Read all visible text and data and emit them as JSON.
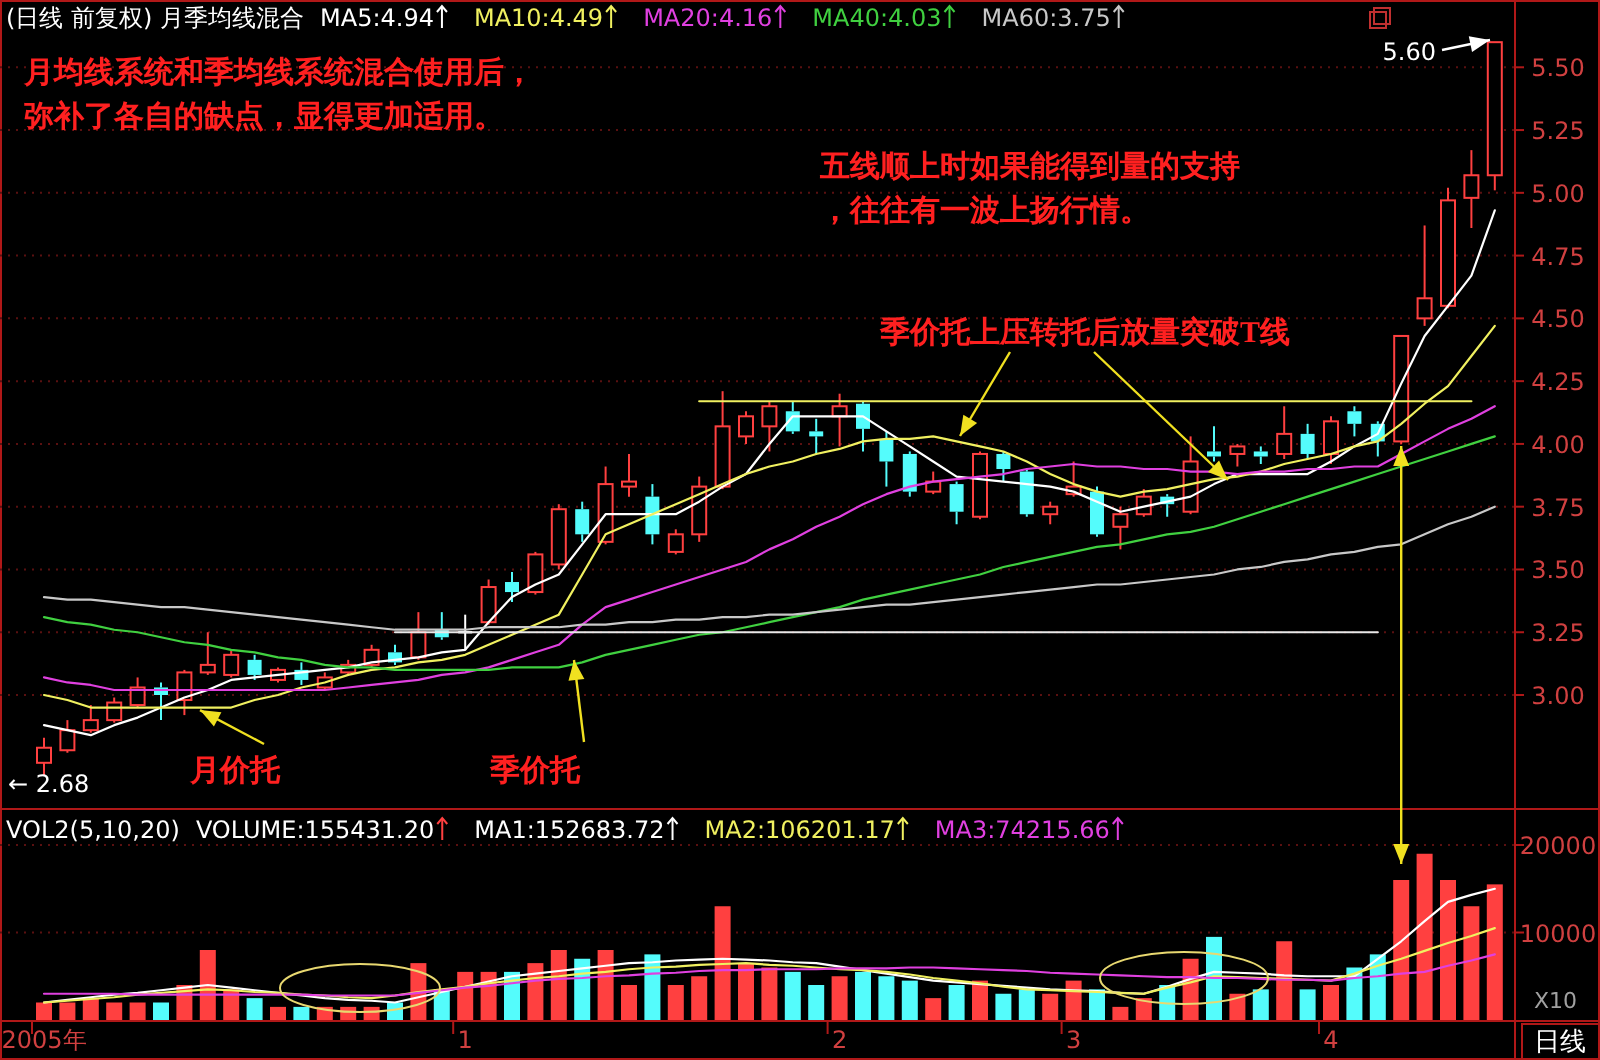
{
  "chart_data": [
    {
      "type": "candlestick",
      "title": "(日线 前复权) 月季均线混合",
      "legend": "top",
      "grid": "y",
      "tick_labels": "y",
      "categories": [
        null,
        null,
        null,
        null,
        null,
        null,
        null,
        null,
        null,
        null,
        null,
        null,
        null,
        null,
        null,
        null,
        null,
        null,
        null,
        null,
        null,
        null,
        null,
        null,
        null,
        null,
        null,
        null,
        null,
        null,
        null,
        null,
        null,
        null,
        null,
        null,
        null,
        null,
        null,
        null,
        null,
        null,
        null,
        null,
        null,
        null,
        null,
        null,
        null,
        null,
        null,
        null,
        null,
        null,
        null,
        null,
        null,
        null,
        null,
        null,
        null,
        null,
        null
      ],
      "ohlc": [
        [
          2.73,
          2.83,
          2.68,
          2.79
        ],
        [
          2.78,
          2.9,
          2.77,
          2.86
        ],
        [
          2.86,
          2.96,
          2.85,
          2.9
        ],
        [
          2.9,
          2.99,
          2.89,
          2.97
        ],
        [
          2.96,
          3.07,
          2.95,
          3.03
        ],
        [
          3.03,
          3.05,
          2.9,
          3.0
        ],
        [
          2.98,
          3.1,
          2.92,
          3.09
        ],
        [
          3.09,
          3.25,
          3.08,
          3.12
        ],
        [
          3.08,
          3.18,
          3.07,
          3.16
        ],
        [
          3.14,
          3.16,
          3.06,
          3.08
        ],
        [
          3.06,
          3.11,
          3.05,
          3.1
        ],
        [
          3.1,
          3.13,
          3.04,
          3.06
        ],
        [
          3.03,
          3.09,
          3.02,
          3.07
        ],
        [
          3.09,
          3.14,
          3.08,
          3.12
        ],
        [
          3.12,
          3.2,
          3.11,
          3.18
        ],
        [
          3.17,
          3.2,
          3.12,
          3.13
        ],
        [
          3.15,
          3.33,
          3.14,
          3.25
        ],
        [
          3.26,
          3.33,
          3.22,
          3.23
        ],
        [
          3.25,
          3.32,
          3.18,
          3.25
        ],
        [
          3.29,
          3.46,
          3.28,
          3.43
        ],
        [
          3.45,
          3.49,
          3.37,
          3.41
        ],
        [
          3.41,
          3.57,
          3.4,
          3.56
        ],
        [
          3.52,
          3.76,
          3.5,
          3.74
        ],
        [
          3.74,
          3.77,
          3.61,
          3.64
        ],
        [
          3.61,
          3.91,
          3.6,
          3.84
        ],
        [
          3.83,
          3.96,
          3.79,
          3.85
        ],
        [
          3.79,
          3.84,
          3.6,
          3.64
        ],
        [
          3.57,
          3.66,
          3.56,
          3.64
        ],
        [
          3.64,
          3.87,
          3.61,
          3.83
        ],
        [
          3.83,
          4.21,
          3.82,
          4.07
        ],
        [
          4.03,
          4.13,
          4.0,
          4.11
        ],
        [
          4.07,
          4.17,
          3.97,
          4.15
        ],
        [
          4.13,
          4.17,
          4.04,
          4.05
        ],
        [
          4.05,
          4.1,
          3.96,
          4.03
        ],
        [
          4.11,
          4.2,
          3.99,
          4.15
        ],
        [
          4.16,
          4.17,
          3.97,
          4.06
        ],
        [
          4.02,
          4.05,
          3.83,
          3.93
        ],
        [
          3.96,
          3.97,
          3.79,
          3.81
        ],
        [
          3.81,
          3.89,
          3.8,
          3.85
        ],
        [
          3.84,
          3.85,
          3.68,
          3.73
        ],
        [
          3.71,
          3.97,
          3.7,
          3.96
        ],
        [
          3.96,
          3.97,
          3.85,
          3.9
        ],
        [
          3.89,
          3.9,
          3.71,
          3.72
        ],
        [
          3.72,
          3.77,
          3.68,
          3.75
        ],
        [
          3.8,
          3.93,
          3.79,
          3.83
        ],
        [
          3.81,
          3.83,
          3.63,
          3.64
        ],
        [
          3.67,
          3.75,
          3.58,
          3.72
        ],
        [
          3.72,
          3.82,
          3.71,
          3.79
        ],
        [
          3.79,
          3.8,
          3.71,
          3.76
        ],
        [
          3.73,
          4.03,
          3.72,
          3.93
        ],
        [
          3.97,
          4.07,
          3.93,
          3.95
        ],
        [
          3.96,
          4.0,
          3.91,
          3.99
        ],
        [
          3.97,
          3.99,
          3.92,
          3.95
        ],
        [
          3.96,
          4.15,
          3.94,
          4.04
        ],
        [
          4.04,
          4.08,
          3.94,
          3.96
        ],
        [
          3.96,
          4.11,
          3.92,
          4.09
        ],
        [
          4.13,
          4.15,
          4.03,
          4.08
        ],
        [
          4.08,
          4.09,
          3.95,
          4.01
        ],
        [
          4.01,
          4.43,
          4.0,
          4.43
        ],
        [
          4.5,
          4.87,
          4.47,
          4.58
        ],
        [
          4.55,
          5.02,
          4.54,
          4.97
        ],
        [
          4.98,
          5.17,
          4.86,
          5.07
        ],
        [
          5.07,
          5.6,
          5.01,
          5.6
        ]
      ],
      "colors": [
        "#ff4040",
        "#ff4040",
        "#ff4040",
        "#ff4040",
        "#ff4040",
        "#54fcfc",
        "#ff4040",
        "#ff4040",
        "#ff4040",
        "#54fcfc",
        "#ff4040",
        "#54fcfc",
        "#ff4040",
        "#ff4040",
        "#ff4040",
        "#54fcfc",
        "#ff4040",
        "#54fcfc",
        "#ffffff",
        "#ff4040",
        "#54fcfc",
        "#ff4040",
        "#ff4040",
        "#54fcfc",
        "#ff4040",
        "#ff4040",
        "#54fcfc",
        "#ff4040",
        "#ff4040",
        "#ff4040",
        "#ff4040",
        "#ff4040",
        "#54fcfc",
        "#54fcfc",
        "#ff4040",
        "#54fcfc",
        "#54fcfc",
        "#54fcfc",
        "#ff4040",
        "#54fcfc",
        "#ff4040",
        "#54fcfc",
        "#54fcfc",
        "#ff4040",
        "#ff4040",
        "#54fcfc",
        "#ff4040",
        "#ff4040",
        "#54fcfc",
        "#ff4040",
        "#54fcfc",
        "#ff4040",
        "#54fcfc",
        "#ff4040",
        "#54fcfc",
        "#ff4040",
        "#54fcfc",
        "#54fcfc",
        "#ff4040",
        "#ff4040",
        "#ff4040",
        "#ff4040",
        "#ff4040"
      ],
      "series": [
        {
          "name": "MA5:4.94",
          "type": "line",
          "color": "#ffffff",
          "values": [
            2.88,
            2.86,
            2.84,
            2.88,
            2.91,
            2.95,
            2.99,
            3.02,
            3.06,
            3.07,
            3.08,
            3.09,
            3.1,
            3.11,
            3.13,
            3.14,
            3.15,
            3.17,
            3.18,
            3.29,
            3.39,
            3.44,
            3.48,
            3.6,
            3.72,
            3.72,
            3.72,
            3.72,
            3.77,
            3.83,
            3.88,
            4.0,
            4.11,
            4.11,
            4.11,
            4.11,
            4.05,
            3.99,
            3.93,
            3.87,
            3.86,
            3.85,
            3.84,
            3.83,
            3.81,
            3.77,
            3.73,
            3.75,
            3.77,
            3.79,
            3.84,
            3.88,
            3.88,
            3.88,
            3.88,
            3.93,
            3.99,
            4.04,
            4.24,
            4.43,
            4.55,
            4.67,
            4.93
          ]
        },
        {
          "name": "MA10:4.49",
          "type": "line",
          "color": "#f0f060",
          "values": [
            3.0,
            2.98,
            2.95,
            2.95,
            2.95,
            2.95,
            2.95,
            2.95,
            2.95,
            2.98,
            3.0,
            3.03,
            3.05,
            3.08,
            3.1,
            3.11,
            3.13,
            3.14,
            3.16,
            3.2,
            3.24,
            3.28,
            3.32,
            3.48,
            3.64,
            3.68,
            3.72,
            3.76,
            3.8,
            3.84,
            3.88,
            3.91,
            3.93,
            3.96,
            3.98,
            4.01,
            4.02,
            4.02,
            4.03,
            4.01,
            3.99,
            3.97,
            3.93,
            3.88,
            3.84,
            3.81,
            3.79,
            3.81,
            3.82,
            3.84,
            3.86,
            3.87,
            3.89,
            3.92,
            3.94,
            3.96,
            3.99,
            4.01,
            4.08,
            4.16,
            4.23,
            4.35,
            4.47
          ]
        },
        {
          "name": "MA20:4.16",
          "type": "line",
          "color": "#e040e0",
          "values": [
            3.07,
            3.05,
            3.04,
            3.02,
            3.02,
            3.02,
            3.02,
            3.02,
            3.02,
            3.02,
            3.02,
            3.02,
            3.02,
            3.03,
            3.04,
            3.05,
            3.06,
            3.08,
            3.09,
            3.11,
            3.14,
            3.17,
            3.2,
            3.28,
            3.35,
            3.38,
            3.41,
            3.44,
            3.47,
            3.5,
            3.53,
            3.58,
            3.62,
            3.67,
            3.71,
            3.76,
            3.8,
            3.83,
            3.85,
            3.86,
            3.87,
            3.88,
            3.9,
            3.91,
            3.92,
            3.91,
            3.91,
            3.9,
            3.9,
            3.89,
            3.89,
            3.88,
            3.89,
            3.89,
            3.9,
            3.9,
            3.91,
            3.91,
            3.96,
            4.01,
            4.06,
            4.1,
            4.15
          ]
        },
        {
          "name": "MA40:4.03",
          "type": "line",
          "color": "#40d040",
          "values": [
            3.31,
            3.29,
            3.28,
            3.26,
            3.25,
            3.23,
            3.21,
            3.2,
            3.18,
            3.17,
            3.15,
            3.14,
            3.12,
            3.11,
            3.11,
            3.1,
            3.1,
            3.1,
            3.1,
            3.1,
            3.11,
            3.11,
            3.11,
            3.13,
            3.16,
            3.18,
            3.2,
            3.22,
            3.24,
            3.25,
            3.27,
            3.29,
            3.31,
            3.33,
            3.35,
            3.38,
            3.4,
            3.42,
            3.44,
            3.46,
            3.48,
            3.51,
            3.53,
            3.55,
            3.57,
            3.59,
            3.6,
            3.62,
            3.64,
            3.65,
            3.67,
            3.7,
            3.73,
            3.76,
            3.79,
            3.82,
            3.85,
            3.88,
            3.91,
            3.94,
            3.97,
            4.0,
            4.03
          ]
        },
        {
          "name": "MA60:3.75",
          "type": "line",
          "color": "#c8c8c8",
          "values": [
            3.39,
            3.38,
            3.38,
            3.37,
            3.36,
            3.35,
            3.35,
            3.34,
            3.33,
            3.32,
            3.31,
            3.3,
            3.29,
            3.28,
            3.27,
            3.26,
            3.26,
            3.26,
            3.26,
            3.27,
            3.27,
            3.27,
            3.27,
            3.28,
            3.28,
            3.29,
            3.29,
            3.3,
            3.3,
            3.31,
            3.31,
            3.32,
            3.32,
            3.33,
            3.34,
            3.35,
            3.36,
            3.36,
            3.37,
            3.38,
            3.39,
            3.4,
            3.41,
            3.42,
            3.43,
            3.44,
            3.44,
            3.45,
            3.46,
            3.47,
            3.48,
            3.5,
            3.51,
            3.53,
            3.54,
            3.56,
            3.57,
            3.59,
            3.6,
            3.64,
            3.68,
            3.71,
            3.75
          ]
        },
        {
          "type": "line",
          "color": "#f0f060",
          "values": [
            null,
            null,
            null,
            null,
            null,
            null,
            null,
            null,
            null,
            null,
            null,
            null,
            null,
            null,
            null,
            null,
            null,
            null,
            null,
            null,
            null,
            null,
            null,
            null,
            null,
            null,
            null,
            null,
            4.17,
            4.17,
            4.17,
            4.17,
            4.17,
            4.17,
            4.17,
            4.17,
            4.17,
            4.17,
            4.17,
            4.17,
            4.17,
            4.17,
            4.17,
            4.17,
            4.17,
            4.17,
            4.17,
            4.17,
            4.17,
            4.17,
            4.17,
            4.17,
            4.17,
            4.17,
            4.17,
            4.17,
            4.17,
            4.17,
            4.17,
            4.17,
            4.17,
            4.17,
            null
          ]
        },
        {
          "type": "line",
          "color": "#e8e8e8",
          "values": [
            null,
            null,
            null,
            null,
            null,
            null,
            null,
            null,
            null,
            null,
            null,
            null,
            null,
            null,
            null,
            3.25,
            3.25,
            3.25,
            3.25,
            3.25,
            3.25,
            3.25,
            3.25,
            3.25,
            3.25,
            3.25,
            3.25,
            3.25,
            3.25,
            3.25,
            3.25,
            3.25,
            3.25,
            3.25,
            3.25,
            3.25,
            3.25,
            3.25,
            3.25,
            3.25,
            3.25,
            3.25,
            3.25,
            3.25,
            3.25,
            3.25,
            3.25,
            3.25,
            3.25,
            3.25,
            3.25,
            3.25,
            3.25,
            3.25,
            3.25,
            3.25,
            3.25,
            3.25,
            null,
            null,
            null,
            null,
            null
          ]
        }
      ],
      "ylim": [
        2.55,
        5.76
      ],
      "yticks": [
        {
          "value": 3,
          "label": "3.00"
        },
        {
          "value": 3.25,
          "label": "3.25"
        },
        {
          "value": 3.5,
          "label": "3.50"
        },
        {
          "value": 3.75,
          "label": "3.75"
        },
        {
          "value": 4,
          "label": "4.00"
        },
        {
          "value": 4.25,
          "label": "4.25"
        },
        {
          "value": 4.5,
          "label": "4.50"
        },
        {
          "value": 4.75,
          "label": "4.75"
        },
        {
          "value": 5,
          "label": "5.00"
        },
        {
          "value": 5.25,
          "label": "5.25"
        },
        {
          "value": 5.5,
          "label": "5.50"
        }
      ],
      "annotations": [
        "月均线系统和季均线系统混合使用后，",
        "弥补了各自的缺点，显得更加适用。",
        "五线顺上时如果能得到量的支持",
        "，往往有一波上扬行情。",
        "季价托上压转托后放量突破T线",
        {
          "text": "月价托",
          "y": 2.94
        },
        "季价托",
        "5.60",
        "← 2.68"
      ]
    },
    {
      "type": "bar",
      "title": "VOL2(5,10,20)",
      "ylabel": "X10",
      "legend": "top",
      "grid": "y",
      "categories": [
        "2005年",
        null,
        null,
        null,
        null,
        null,
        null,
        null,
        null,
        null,
        null,
        null,
        null,
        null,
        null,
        null,
        null,
        null,
        "1",
        null,
        null,
        null,
        null,
        null,
        null,
        null,
        null,
        null,
        null,
        null,
        null,
        null,
        null,
        null,
        "2",
        null,
        null,
        null,
        null,
        null,
        null,
        null,
        null,
        null,
        "3",
        null,
        null,
        null,
        null,
        null,
        null,
        null,
        null,
        null,
        null,
        "4",
        null,
        null,
        null,
        null,
        null,
        null,
        null
      ],
      "series": [
        {
          "name": "VOLUME:155431.20",
          "values": [
            2000,
            2000,
            2500,
            2000,
            2000,
            2000,
            4000,
            8000,
            3500,
            2500,
            1500,
            1500,
            1500,
            1500,
            1500,
            2000,
            6500,
            3500,
            5500,
            5500,
            5500,
            6500,
            8000,
            7000,
            8000,
            4000,
            7500,
            4000,
            5000,
            13000,
            6500,
            6000,
            5500,
            4000,
            5000,
            5500,
            5000,
            4500,
            2500,
            4000,
            4500,
            3000,
            3500,
            3000,
            4500,
            3500,
            1500,
            2500,
            4000,
            7000,
            9500,
            3000,
            3500,
            9000,
            3500,
            4000,
            6000,
            7500,
            16000,
            19000,
            16000,
            13000,
            15500
          ],
          "colors": [
            "#ff4040",
            "#ff4040",
            "#ff4040",
            "#ff4040",
            "#ff4040",
            "#54fcfc",
            "#ff4040",
            "#ff4040",
            "#ff4040",
            "#54fcfc",
            "#ff4040",
            "#54fcfc",
            "#ff4040",
            "#ff4040",
            "#ff4040",
            "#54fcfc",
            "#ff4040",
            "#54fcfc",
            "#ff4040",
            "#ff4040",
            "#54fcfc",
            "#ff4040",
            "#ff4040",
            "#54fcfc",
            "#ff4040",
            "#ff4040",
            "#54fcfc",
            "#ff4040",
            "#ff4040",
            "#ff4040",
            "#ff4040",
            "#ff4040",
            "#54fcfc",
            "#54fcfc",
            "#ff4040",
            "#54fcfc",
            "#54fcfc",
            "#54fcfc",
            "#ff4040",
            "#54fcfc",
            "#ff4040",
            "#54fcfc",
            "#54fcfc",
            "#ff4040",
            "#ff4040",
            "#54fcfc",
            "#ff4040",
            "#ff4040",
            "#54fcfc",
            "#ff4040",
            "#54fcfc",
            "#ff4040",
            "#54fcfc",
            "#ff4040",
            "#54fcfc",
            "#ff4040",
            "#54fcfc",
            "#54fcfc",
            "#ff4040",
            "#ff4040",
            "#ff4040",
            "#ff4040",
            "#ff4040"
          ]
        },
        {
          "name": "MA1:152683.72",
          "type": "line",
          "color": "#ffffff",
          "values": [
            2000,
            2300,
            2600,
            2900,
            3100,
            3400,
            3700,
            4000,
            3700,
            3400,
            3100,
            2800,
            2500,
            2300,
            2200,
            2000,
            2600,
            3200,
            3800,
            4400,
            5000,
            5300,
            5600,
            5900,
            6200,
            6500,
            6600,
            6800,
            6900,
            7000,
            6900,
            6800,
            6600,
            6500,
            6100,
            5700,
            5300,
            4900,
            4500,
            4300,
            4100,
            3900,
            3700,
            3500,
            3400,
            3300,
            3100,
            3000,
            3800,
            4700,
            5500,
            5400,
            5300,
            5100,
            5000,
            5000,
            5000,
            7000,
            9000,
            11300,
            13500,
            14300,
            15000
          ]
        },
        {
          "name": "MA2:106201.17",
          "type": "line",
          "color": "#f0f060",
          "values": [
            2000,
            2200,
            2400,
            2600,
            2900,
            3100,
            3300,
            3500,
            3400,
            3200,
            3100,
            2900,
            2800,
            2600,
            2500,
            2800,
            3200,
            3500,
            3800,
            4200,
            4500,
            4800,
            5000,
            5300,
            5500,
            5800,
            6000,
            6100,
            6300,
            6400,
            6500,
            6300,
            6200,
            6000,
            5800,
            5700,
            5500,
            5200,
            4800,
            4500,
            4200,
            3800,
            3500,
            3400,
            3300,
            3200,
            3100,
            3000,
            3700,
            4300,
            5000,
            4900,
            4800,
            4700,
            4600,
            4500,
            5300,
            6200,
            7000,
            7900,
            8800,
            9600,
            10500
          ]
        },
        {
          "name": "MA3:74215.66",
          "type": "line",
          "color": "#e040e0",
          "values": [
            3000,
            3000,
            3000,
            3000,
            2900,
            2900,
            2900,
            2900,
            2900,
            2900,
            2900,
            2900,
            2800,
            2800,
            2800,
            2800,
            3100,
            3400,
            3700,
            3900,
            4200,
            4500,
            4700,
            4800,
            5000,
            5100,
            5300,
            5400,
            5600,
            5700,
            5700,
            5800,
            5800,
            5800,
            5900,
            5900,
            5900,
            6000,
            6000,
            5900,
            5800,
            5700,
            5600,
            5400,
            5300,
            5200,
            5100,
            5000,
            4900,
            4900,
            4800,
            4800,
            4700,
            4600,
            4600,
            4500,
            4800,
            5000,
            5300,
            5500,
            6200,
            6800,
            7500
          ]
        }
      ],
      "ylim": [
        0,
        24000
      ],
      "yticks": [
        10000,
        20000
      ],
      "annotations": [
        "日线"
      ]
    }
  ]
}
